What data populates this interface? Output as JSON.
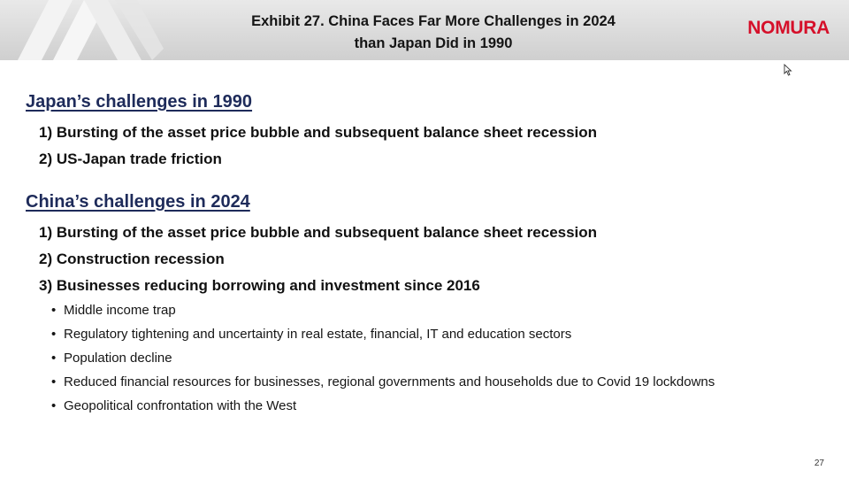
{
  "header": {
    "title_line1": "Exhibit 27. China Faces Far More Challenges in 2024",
    "title_line2": "than Japan Did in 1990",
    "logo": "NOMURA"
  },
  "japan": {
    "heading": "Japan’s challenges in 1990",
    "items": [
      "1) Bursting of the asset price bubble and subsequent balance sheet recession",
      "2) US-Japan trade friction"
    ]
  },
  "china": {
    "heading": "China’s challenges in 2024",
    "items": [
      "1) Bursting of the asset price bubble and subsequent balance sheet recession",
      "2) Construction recession",
      "3) Businesses reducing borrowing and investment since 2016"
    ],
    "bullets": [
      "Middle income trap",
      "Regulatory tightening and uncertainty in real estate, financial, IT and education sectors",
      "Population decline",
      "Reduced financial resources for businesses, regional governments and households due to Covid 19 lockdowns",
      "Geopolitical confrontation with the West"
    ]
  },
  "bullet_symbol": "•",
  "page_number": "27",
  "colors": {
    "heading": "#1e2b5a",
    "logo": "#d5102a",
    "header_bg": "#d9d9d9"
  }
}
